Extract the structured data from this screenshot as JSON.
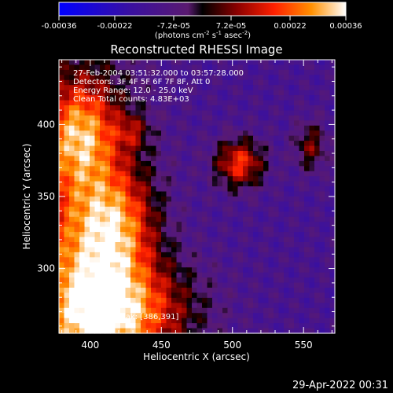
{
  "chart_data": {
    "type": "heatmap",
    "title": "Reconstructed RHESSI Image",
    "xlabel": "Heliocentric X (arcsec)",
    "ylabel": "Heliocentric Y (arcsec)",
    "xlim": [
      378,
      572
    ],
    "ylim": [
      255,
      445
    ],
    "xticks": [
      400,
      450,
      500,
      550
    ],
    "yticks": [
      300,
      350,
      400
    ],
    "colorbar": {
      "label_html_parts": [
        "(photons cm",
        "-2",
        " s",
        "-1",
        " asec",
        "-2",
        ")"
      ],
      "range": [
        -0.00036,
        0.00036
      ],
      "ticks": [
        -0.00036,
        -0.00022,
        -7.2e-05,
        7.2e-05,
        0.00022,
        0.00036
      ],
      "tick_labels": [
        "-0.00036",
        "-0.00022",
        "-7.2e-05",
        "7.2e-05",
        "0.00022",
        "0.00036"
      ]
    },
    "annotations": [
      "27-Feb-2004 03:51:32.000 to 03:57:28.000",
      "Detectors: 3F 4F 5F 6F 7F 8F, Att 0",
      "Energy Range: 12.0 - 25.0 keV",
      "Clean     Total counts: 4.83E+03"
    ],
    "peak_label": "Position of Peak: [386,391]",
    "sources": [
      {
        "x": 395,
        "y": 300,
        "sx": 30,
        "sy": 90,
        "amp": 0.00034
      },
      {
        "x": 425,
        "y": 270,
        "sx": 35,
        "sy": 25,
        "amp": 0.0003
      },
      {
        "x": 420,
        "y": 330,
        "sx": 18,
        "sy": 25,
        "amp": 0.00022
      },
      {
        "x": 392,
        "y": 395,
        "sx": 18,
        "sy": 25,
        "amp": 0.00025
      },
      {
        "x": 505,
        "y": 373,
        "sx": 12,
        "sy": 12,
        "amp": 0.0003
      },
      {
        "x": 555,
        "y": 385,
        "sx": 8,
        "sy": 12,
        "amp": 0.00018
      },
      {
        "x": 430,
        "y": 395,
        "sx": 8,
        "sy": 8,
        "amp": 0.00012
      }
    ],
    "background": -0.00012
  },
  "timestamp": "29-Apr-2022 00:31"
}
